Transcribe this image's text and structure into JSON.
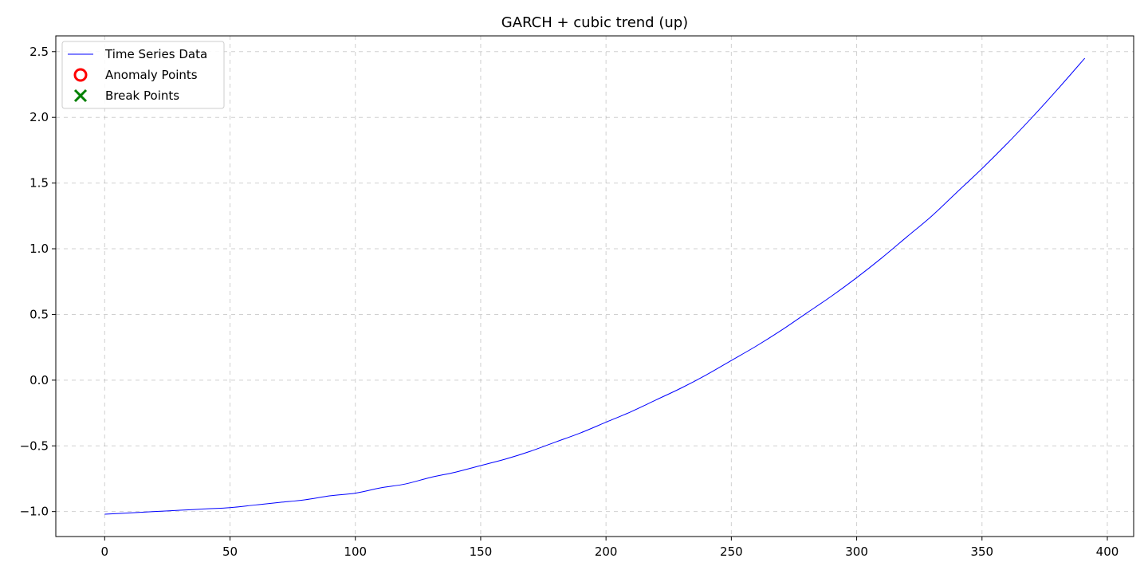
{
  "chart_data": {
    "type": "line",
    "title": "GARCH + cubic trend (up)",
    "xlabel": "",
    "ylabel": "",
    "xlim": [
      -19.5,
      410.5
    ],
    "ylim": [
      -1.19,
      2.62
    ],
    "x_ticks": [
      0,
      50,
      100,
      150,
      200,
      250,
      300,
      350,
      400
    ],
    "x_tick_labels": [
      "0",
      "50",
      "100",
      "150",
      "200",
      "250",
      "300",
      "350",
      "400"
    ],
    "y_ticks": [
      -1.0,
      -0.5,
      0.0,
      0.5,
      1.0,
      1.5,
      2.0,
      2.5
    ],
    "y_tick_labels": [
      "−1.0",
      "−0.5",
      "0.0",
      "0.5",
      "1.0",
      "1.5",
      "2.0",
      "2.5"
    ],
    "grid": true,
    "legend_position": "upper-left",
    "legend": [
      {
        "label": "Time Series Data",
        "marker": "line",
        "color": "#0000ff"
      },
      {
        "label": "Anomaly Points",
        "marker": "circle",
        "color": "#ff0000"
      },
      {
        "label": "Break Points",
        "marker": "x",
        "color": "#008000"
      }
    ],
    "series": [
      {
        "name": "Time Series Data",
        "color": "#0000ff",
        "x": [
          0,
          10,
          20,
          30,
          40,
          50,
          60,
          70,
          80,
          90,
          100,
          110,
          120,
          130,
          140,
          150,
          160,
          170,
          180,
          190,
          200,
          210,
          220,
          230,
          240,
          250,
          260,
          270,
          280,
          290,
          300,
          310,
          320,
          330,
          340,
          350,
          360,
          370,
          380,
          391
        ],
        "values": [
          -1.02,
          -1.01,
          -1.0,
          -0.99,
          -0.98,
          -0.97,
          -0.95,
          -0.93,
          -0.91,
          -0.88,
          -0.86,
          -0.82,
          -0.79,
          -0.74,
          -0.7,
          -0.65,
          -0.6,
          -0.54,
          -0.47,
          -0.4,
          -0.32,
          -0.24,
          -0.15,
          -0.06,
          0.04,
          0.15,
          0.26,
          0.38,
          0.51,
          0.64,
          0.78,
          0.93,
          1.09,
          1.25,
          1.43,
          1.61,
          1.8,
          2.0,
          2.21,
          2.45
        ]
      }
    ],
    "anomaly_points": [],
    "break_points": []
  }
}
